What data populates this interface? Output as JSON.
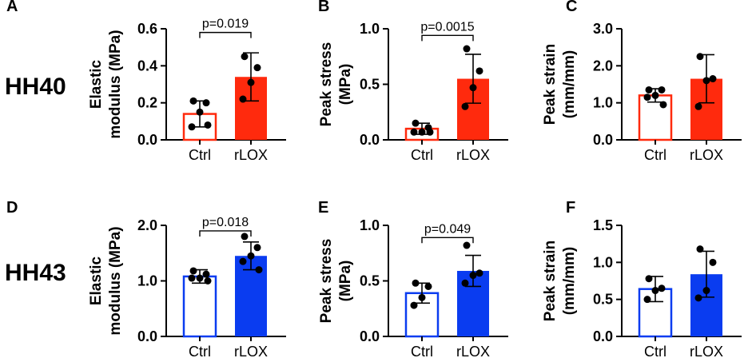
{
  "row_labels": [
    "HH40",
    "HH43"
  ],
  "colors": {
    "red": "#ff2a0d",
    "blue": "#0a3cf0",
    "axis": "#000000"
  },
  "chart_data": [
    {
      "panel": "A",
      "type": "bar",
      "row": 0,
      "col": 0,
      "title": "",
      "xlabel": "",
      "ylabel": [
        "Elastic",
        "modulus (MPa)"
      ],
      "categories": [
        "Ctrl",
        "rLOX"
      ],
      "ylim": [
        0,
        0.6
      ],
      "yticks": [
        0,
        0.2,
        0.4,
        0.6
      ],
      "ytick_labels": [
        "0.0",
        "0.2",
        "0.4",
        "0.6"
      ],
      "means": [
        0.14,
        0.34
      ],
      "sd": [
        0.07,
        0.13
      ],
      "points": [
        [
          0.21,
          0.2,
          0.15,
          0.07,
          0.08
        ],
        [
          0.45,
          0.39,
          0.31,
          0.22
        ]
      ],
      "pvalue": "p=0.019",
      "pvalue_y": 0.58,
      "color": "red"
    },
    {
      "panel": "B",
      "type": "bar",
      "row": 0,
      "col": 1,
      "title": "",
      "xlabel": "",
      "ylabel": [
        "Peak stress",
        "(MPa)"
      ],
      "categories": [
        "Ctrl",
        "rLOX"
      ],
      "ylim": [
        0,
        1.0
      ],
      "yticks": [
        0,
        0.5,
        1.0
      ],
      "ytick_labels": [
        "0.0",
        "0.5",
        "1.0"
      ],
      "means": [
        0.1,
        0.55
      ],
      "sd": [
        0.05,
        0.22
      ],
      "points": [
        [
          0.15,
          0.11,
          0.07,
          0.07,
          0.07
        ],
        [
          0.82,
          0.62,
          0.47,
          0.3
        ]
      ],
      "pvalue": "p=0.0015",
      "pvalue_y": 0.94,
      "color": "red"
    },
    {
      "panel": "C",
      "type": "bar",
      "row": 0,
      "col": 2,
      "title": "",
      "xlabel": "",
      "ylabel": [
        "Peak strain",
        "(mm/mm)"
      ],
      "categories": [
        "Ctrl",
        "rLOX"
      ],
      "ylim": [
        0,
        3.0
      ],
      "yticks": [
        0,
        1.0,
        2.0,
        3.0
      ],
      "ytick_labels": [
        "0.0",
        "1.0",
        "2.0",
        "3.0"
      ],
      "means": [
        1.2,
        1.65
      ],
      "sd": [
        0.18,
        0.65
      ],
      "points": [
        [
          1.35,
          1.35,
          1.2,
          1.15,
          0.95
        ],
        [
          2.25,
          1.65,
          1.6,
          0.9
        ]
      ],
      "pvalue": null,
      "color": "red"
    },
    {
      "panel": "D",
      "type": "bar",
      "row": 1,
      "col": 0,
      "title": "",
      "xlabel": "",
      "ylabel": [
        "Elastic",
        "modulus (MPa)"
      ],
      "categories": [
        "Ctrl",
        "rLOX"
      ],
      "ylim": [
        0,
        2.0
      ],
      "yticks": [
        0,
        1.0,
        2.0
      ],
      "ytick_labels": [
        "0.0",
        "1.0",
        "2.0"
      ],
      "means": [
        1.08,
        1.45
      ],
      "sd": [
        0.12,
        0.25
      ],
      "points": [
        [
          1.18,
          1.12,
          1.05,
          1.05,
          1.0
        ],
        [
          1.8,
          1.6,
          1.45,
          1.35,
          1.2
        ]
      ],
      "pvalue": "p=0.018",
      "pvalue_y": 1.9,
      "color": "blue"
    },
    {
      "panel": "E",
      "type": "bar",
      "row": 1,
      "col": 1,
      "title": "",
      "xlabel": "",
      "ylabel": [
        "Peak stress",
        "(MPa)"
      ],
      "categories": [
        "Ctrl",
        "rLOX"
      ],
      "ylim": [
        0,
        1.0
      ],
      "yticks": [
        0,
        0.5,
        1.0
      ],
      "ytick_labels": [
        "0.0",
        "0.5",
        "1.0"
      ],
      "means": [
        0.39,
        0.59
      ],
      "sd": [
        0.09,
        0.14
      ],
      "points": [
        [
          0.48,
          0.45,
          0.35,
          0.28
        ],
        [
          0.82,
          0.57,
          0.55,
          0.48
        ]
      ],
      "pvalue": "p=0.049",
      "pvalue_y": 0.89,
      "color": "blue"
    },
    {
      "panel": "F",
      "type": "bar",
      "row": 1,
      "col": 2,
      "title": "",
      "xlabel": "",
      "ylabel": [
        "Peak strain",
        "(mm/mm)"
      ],
      "categories": [
        "Ctrl",
        "rLOX"
      ],
      "ylim": [
        0,
        1.5
      ],
      "yticks": [
        0,
        0.5,
        1.0,
        1.5
      ],
      "ytick_labels": [
        "0.0",
        "0.5",
        "1.0",
        "1.5"
      ],
      "means": [
        0.64,
        0.84
      ],
      "sd": [
        0.17,
        0.31
      ],
      "points": [
        [
          0.78,
          0.65,
          0.62,
          0.5
        ],
        [
          1.18,
          1.0,
          0.62,
          0.52
        ]
      ],
      "pvalue": null,
      "color": "blue"
    }
  ]
}
